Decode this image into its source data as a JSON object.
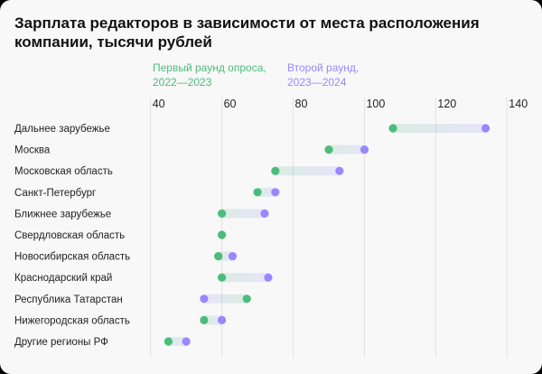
{
  "chart_data": {
    "type": "dumbbell",
    "title": "Зарплата редакторов в зависимости от места расположения компании, тысячи рублей",
    "xlim": [
      40,
      140
    ],
    "xticks": [
      "40",
      "60",
      "80",
      "100",
      "120",
      "140"
    ],
    "grid": true,
    "legend_position": "top",
    "categories": [
      "Дальнее зарубежье",
      "Москва",
      "Московская область",
      "Санкт-Петербург",
      "Ближнее зарубежье",
      "Свердловская область",
      "Новосибирская область",
      "Краснодарский край",
      "Республика Татарстан",
      "Нижегородская область",
      "Другие регионы РФ"
    ],
    "series": [
      {
        "name": "Первый раунд опроса, 2022—2023",
        "color": "#4cbc7c",
        "values": [
          108,
          90,
          75,
          70,
          60,
          60,
          59,
          60,
          67,
          55,
          45
        ]
      },
      {
        "name": "Второй раунд, 2023—2024",
        "color": "#9a87ff",
        "values": [
          134,
          100,
          93,
          75,
          72,
          null,
          63,
          73,
          55,
          60,
          50
        ]
      }
    ]
  },
  "legend": {
    "first_line1": "Первый раунд опроса,",
    "first_line2": "2022—2023",
    "second_line1": "Второй раунд,",
    "second_line2": "2023—2024"
  }
}
